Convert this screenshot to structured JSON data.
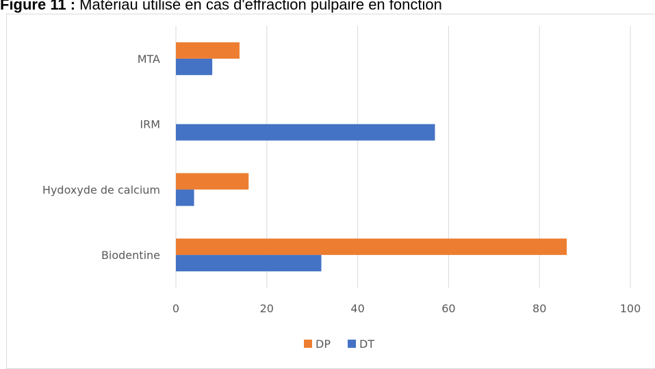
{
  "figure_title": {
    "bold": "Figure 11 :",
    "rest": "Matériau utilisé en cas d'effraction pulpaire en fonction"
  },
  "chart_data": {
    "type": "bar",
    "orientation": "horizontal",
    "categories": [
      "Biodentine",
      "Hydoxyde de calcium",
      "IRM",
      "MTA"
    ],
    "series": [
      {
        "name": "DT",
        "color": "#4472c4",
        "values": [
          32,
          4,
          57,
          8
        ]
      },
      {
        "name": "DP",
        "color": "#ed7d31",
        "values": [
          86,
          16,
          0,
          14
        ]
      }
    ],
    "legend_order": [
      "DP",
      "DT"
    ],
    "xlim": [
      0,
      100
    ],
    "xticks": [
      0,
      20,
      40,
      60,
      80,
      100
    ],
    "grid": true,
    "legend_position": "bottom"
  }
}
